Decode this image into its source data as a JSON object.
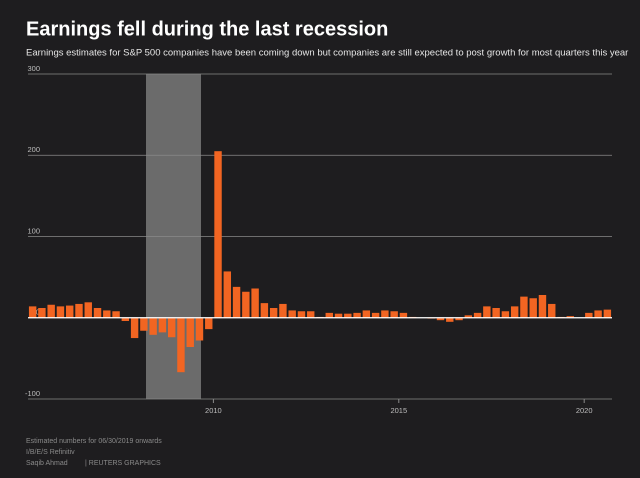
{
  "chart_data": {
    "type": "bar",
    "title": "Earnings fell during the last recession",
    "subtitle": "Earnings estimates for S&P 500 companies have been coming down but companies are still expected to post growth for most quarters this year",
    "note": "Estimated numbers for 06/30/2019 onwards",
    "source": "I/B/E/S Refinitiv",
    "author": "Saqib Ahmad",
    "credit": "| REUTERS GRAPHICS",
    "categories": [
      null,
      null,
      null,
      null,
      null,
      null,
      null,
      null,
      null,
      null,
      null,
      null,
      null,
      null,
      null,
      null,
      null,
      null,
      null,
      null,
      "2010",
      null,
      null,
      null,
      null,
      null,
      null,
      null,
      null,
      null,
      null,
      null,
      null,
      null,
      null,
      null,
      null,
      null,
      null,
      null,
      "2015",
      null,
      null,
      null,
      null,
      null,
      null,
      null,
      null,
      null,
      null,
      null,
      null,
      null,
      null,
      null,
      null,
      null,
      null,
      null,
      "2020",
      null,
      null
    ],
    "values": [
      14,
      12,
      16,
      14,
      15,
      17,
      19,
      12,
      9,
      8,
      -4,
      -25,
      -16,
      -21,
      -18,
      -24,
      -67,
      -36,
      -28,
      -14,
      205,
      57,
      38,
      32,
      36,
      18,
      12,
      17,
      9,
      8,
      8,
      1,
      6,
      5,
      5,
      6,
      9,
      6,
      9,
      8,
      6,
      1,
      0,
      -1,
      -3,
      -5,
      -3,
      3,
      6,
      14,
      12,
      8,
      14,
      26,
      24,
      28,
      17,
      1,
      2,
      0,
      6,
      9,
      10
    ],
    "color": "#f26522",
    "ylim": [
      -100,
      300
    ],
    "yticks": [
      -100,
      0,
      100,
      200,
      300
    ],
    "grid": true
  }
}
